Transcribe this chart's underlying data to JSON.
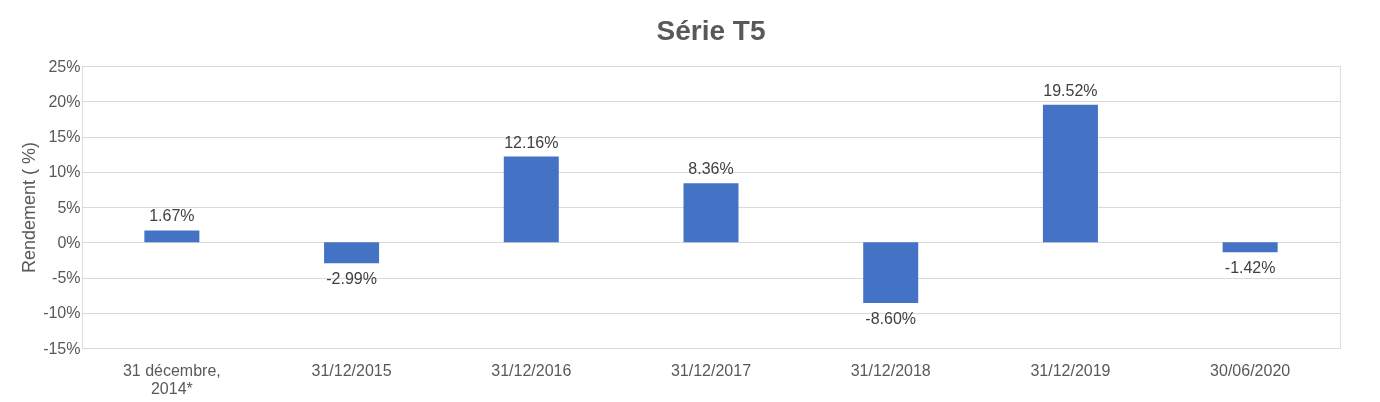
{
  "chart_data": {
    "type": "bar",
    "title": "Série T5",
    "ylabel": "Rendement ( %)",
    "categories": [
      "31 décembre, 2014*",
      "31/12/2015",
      "31/12/2016",
      "31/12/2017",
      "31/12/2018",
      "31/12/2019",
      "30/06/2020"
    ],
    "values": [
      1.67,
      -2.99,
      12.16,
      8.36,
      -8.6,
      19.52,
      -1.42
    ],
    "value_labels": [
      "1.67%",
      "-2.99%",
      "12.16%",
      "8.36%",
      "-8.60%",
      "19.52%",
      "-1.42%"
    ],
    "color": "#4472c4",
    "ylim": [
      -15,
      25
    ],
    "yticks": [
      {
        "value": -15,
        "label": "-15%"
      },
      {
        "value": -10,
        "label": "-10%"
      },
      {
        "value": -5,
        "label": "-5%"
      },
      {
        "value": 0,
        "label": "0%"
      },
      {
        "value": 5,
        "label": "5%"
      },
      {
        "value": 10,
        "label": "10%"
      },
      {
        "value": 15,
        "label": "15%"
      },
      {
        "value": 20,
        "label": "20%"
      },
      {
        "value": 25,
        "label": "25%"
      }
    ],
    "grid": "y"
  }
}
